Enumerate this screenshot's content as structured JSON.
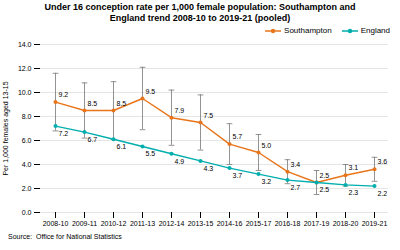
{
  "chart_data": {
    "type": "line",
    "title": "Under 16 conception rate per 1,000 female population: Southampton and\nEngland trend 2008-10 to 2019-21 (pooled)",
    "ylabel": "Per 1,000 females aged 13-15",
    "source": "Source:  Office for National Statistics",
    "categories": [
      "2008-10",
      "2009-11",
      "2010-12",
      "2011-13",
      "2012-14",
      "2013-15",
      "2014-16",
      "2015-17",
      "2016-18",
      "2017-19",
      "2018-20",
      "2019-21"
    ],
    "series": [
      {
        "name": "Southampton",
        "color": "#E8751A",
        "marker": "circle",
        "values": [
          9.2,
          8.5,
          8.5,
          9.5,
          7.9,
          7.5,
          5.7,
          5.0,
          3.4,
          2.5,
          3.1,
          3.6
        ],
        "value_labels": [
          "9.2",
          "8.5",
          "8.5",
          "9.5",
          "7.9",
          "7.5",
          "5.7",
          "5.0",
          "3.4",
          "2.5",
          "3.1",
          "3.6"
        ],
        "ci_low": [
          6.8,
          6.2,
          6.1,
          6.9,
          5.6,
          5.2,
          4.0,
          3.5,
          2.4,
          1.5,
          2.2,
          2.6
        ],
        "ci_high": [
          11.6,
          10.8,
          10.9,
          12.1,
          10.2,
          9.8,
          7.4,
          6.5,
          4.4,
          3.5,
          4.0,
          4.6
        ],
        "error_color": "#777777"
      },
      {
        "name": "England",
        "color": "#00AEAE",
        "marker": "circle",
        "values": [
          7.2,
          6.7,
          6.1,
          5.5,
          4.9,
          4.3,
          3.7,
          3.2,
          2.7,
          2.5,
          2.3,
          2.2
        ],
        "value_labels": [
          "7.2",
          "6.7",
          "6.1",
          "5.5",
          "4.9",
          "4.3",
          "3.7",
          "3.2",
          "2.7",
          "2.5",
          "2.3",
          "2.2"
        ]
      }
    ],
    "ylim": [
      0.0,
      14.0
    ],
    "yticks": [
      {
        "value": 0,
        "label": "0.0"
      },
      {
        "value": 2,
        "label": "2.0"
      },
      {
        "value": 4,
        "label": "4.0"
      },
      {
        "value": 6,
        "label": "6.0"
      },
      {
        "value": 8,
        "label": "8.0"
      },
      {
        "value": 10,
        "label": "10.0"
      },
      {
        "value": 12,
        "label": "12.0"
      },
      {
        "value": 14,
        "label": "14.0"
      }
    ],
    "grid": true,
    "legend": "upper right",
    "data_labels": true
  }
}
